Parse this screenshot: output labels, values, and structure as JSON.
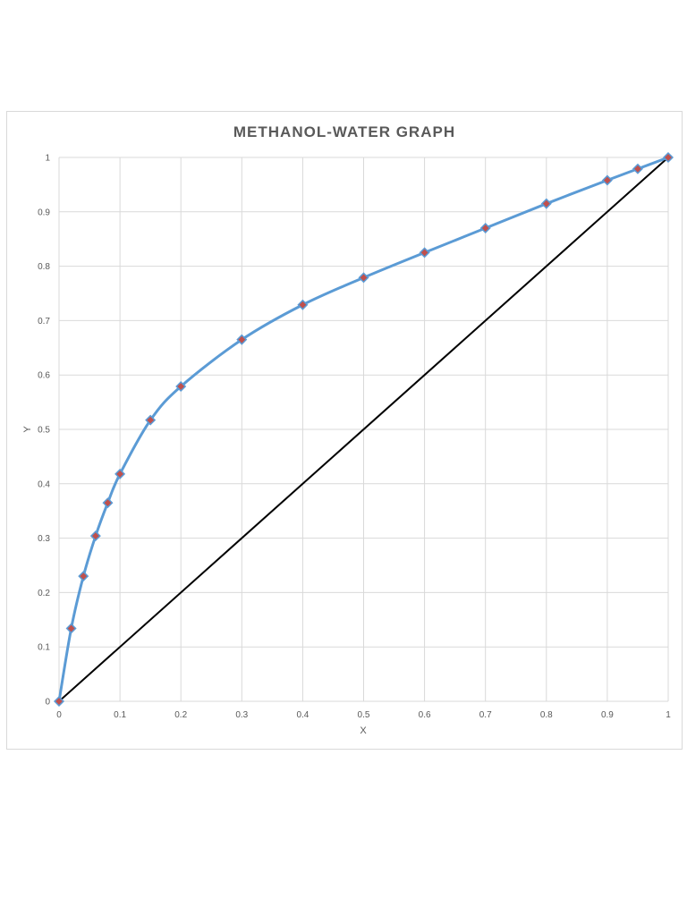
{
  "chart_data": {
    "type": "scatter",
    "title": "METHANOL-WATER GRAPH",
    "xlabel": "X",
    "ylabel": "Y",
    "xlim": [
      0,
      1
    ],
    "ylim": [
      0,
      1
    ],
    "x_ticks": [
      "0",
      "0.1",
      "0.2",
      "0.3",
      "0.4",
      "0.5",
      "0.6",
      "0.7",
      "0.8",
      "0.9",
      "1"
    ],
    "y_ticks": [
      "0",
      "0.1",
      "0.2",
      "0.3",
      "0.4",
      "0.5",
      "0.6",
      "0.7",
      "0.8",
      "0.9",
      "1"
    ],
    "grid": true,
    "series": [
      {
        "style": "smooth line with markers",
        "color": "#5b9bd5",
        "marker_color": "#c0504d",
        "x": [
          0,
          0.02,
          0.04,
          0.06,
          0.08,
          0.1,
          0.15,
          0.2,
          0.3,
          0.4,
          0.5,
          0.6,
          0.7,
          0.8,
          0.9,
          0.95,
          1.0
        ],
        "y": [
          0,
          0.134,
          0.23,
          0.304,
          0.365,
          0.418,
          0.517,
          0.579,
          0.665,
          0.729,
          0.779,
          0.825,
          0.87,
          0.915,
          0.958,
          0.979,
          1.0
        ]
      },
      {
        "style": "straight line",
        "color": "#000000",
        "x": [
          0,
          1
        ],
        "y": [
          0,
          1
        ]
      }
    ]
  }
}
